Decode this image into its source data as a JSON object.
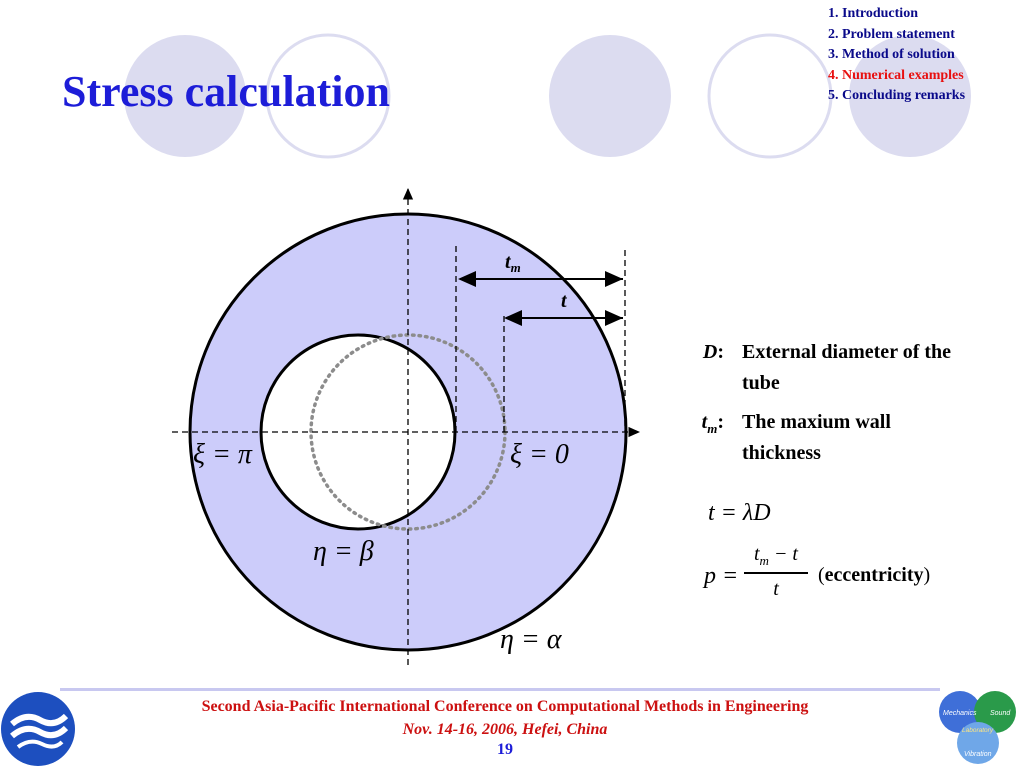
{
  "title": "Stress calculation",
  "toc": [
    {
      "label": "1. Introduction",
      "active": false
    },
    {
      "label": "2. Problem statement",
      "active": false
    },
    {
      "label": "3. Method of solution",
      "active": false
    },
    {
      "label": "4. Numerical examples",
      "active": true
    },
    {
      "label": "5. Concluding remarks",
      "active": false
    }
  ],
  "diagram": {
    "label_tm_base": "t",
    "label_tm_sub": "m",
    "label_t": "t",
    "xi_pi": "ξ = π",
    "xi_zero": "ξ = 0",
    "eta_beta": "η = β",
    "eta_alpha": "η = α"
  },
  "definitions": [
    {
      "symbol": "D",
      "symbol_sub": "",
      "text": "External diameter of the tube"
    },
    {
      "symbol": "t",
      "symbol_sub": "m",
      "text": "The maxium wall thickness"
    }
  ],
  "equations": {
    "t_eq": "t = λD",
    "p_lhs": "p =",
    "p_num_base": "t",
    "p_num_sub": "m",
    "p_num_rest": " − t",
    "p_den": "t",
    "paren_open": "(",
    "eccentricity": "eccentricity",
    "paren_close": ")"
  },
  "footer": {
    "line1": "Second Asia-Pacific International Conference on Computational Methods in Engineering",
    "line2": "Nov. 14-16, 2006, Hefei, China",
    "page": "19"
  },
  "logo_right": {
    "mechanics": "Mechanics",
    "sound": "Sound",
    "laboratory": "Laboratory",
    "vibration": "Vibration"
  },
  "colors": {
    "title": "#1d1dd8",
    "toc": "#0a0a8a",
    "toc_active": "#e81010",
    "annulus_fill": "#ccccfa",
    "deco_circle": "#dcdcf0",
    "footer_text": "#cc1010"
  }
}
